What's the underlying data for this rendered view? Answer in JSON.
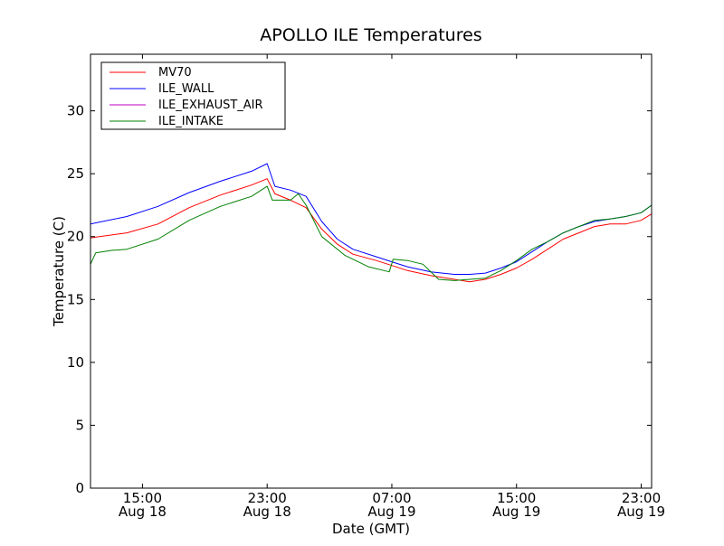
{
  "chart_data": {
    "type": "line",
    "title": "APOLLO ILE Temperatures",
    "xlabel": "Date (GMT)",
    "ylabel": "Temperature (C)",
    "x_range": [
      "2014-08-18 11:40",
      "2014-08-19 23:40"
    ],
    "ylim": [
      0,
      34.5
    ],
    "yticks": [
      0,
      5,
      10,
      15,
      20,
      25,
      30
    ],
    "xticks": [
      {
        "x": "2014-08-18 15:00",
        "line1": "15:00",
        "line2": "Aug 18"
      },
      {
        "x": "2014-08-18 23:00",
        "line1": "23:00",
        "line2": "Aug 18"
      },
      {
        "x": "2014-08-19 07:00",
        "line1": "07:00",
        "line2": "Aug 19"
      },
      {
        "x": "2014-08-19 15:00",
        "line1": "15:00",
        "line2": "Aug 19"
      },
      {
        "x": "2014-08-19 23:00",
        "line1": "23:00",
        "line2": "Aug 19"
      }
    ],
    "grid": false,
    "legend_position": "top-left",
    "series": [
      {
        "name": "MV70",
        "color": "#ff0000",
        "x": [
          "2014-08-18 11:40",
          "2014-08-18 14:00",
          "2014-08-18 16:00",
          "2014-08-18 18:00",
          "2014-08-18 20:00",
          "2014-08-18 22:00",
          "2014-08-18 23:00",
          "2014-08-18 23:30",
          "2014-08-19 00:30",
          "2014-08-19 01:30",
          "2014-08-19 02:30",
          "2014-08-19 03:30",
          "2014-08-19 04:30",
          "2014-08-19 06:00",
          "2014-08-19 07:00",
          "2014-08-19 08:00",
          "2014-08-19 09:30",
          "2014-08-19 11:00",
          "2014-08-19 12:00",
          "2014-08-19 13:00",
          "2014-08-19 14:00",
          "2014-08-19 15:00",
          "2014-08-19 16:00",
          "2014-08-19 17:00",
          "2014-08-19 18:00",
          "2014-08-19 19:00",
          "2014-08-19 20:00",
          "2014-08-19 21:00",
          "2014-08-19 22:00",
          "2014-08-19 23:00",
          "2014-08-19 23:40"
        ],
        "y": [
          19.9,
          20.3,
          21.0,
          22.3,
          23.3,
          24.1,
          24.6,
          23.4,
          22.9,
          22.3,
          20.6,
          19.4,
          18.6,
          18.1,
          17.7,
          17.3,
          16.9,
          16.6,
          16.4,
          16.6,
          17.0,
          17.5,
          18.2,
          19.0,
          19.8,
          20.3,
          20.8,
          21.0,
          21.0,
          21.3,
          21.8
        ]
      },
      {
        "name": "ILE_WALL",
        "color": "#0000ff",
        "x": [
          "2014-08-18 11:40",
          "2014-08-18 14:00",
          "2014-08-18 16:00",
          "2014-08-18 18:00",
          "2014-08-18 20:00",
          "2014-08-18 22:00",
          "2014-08-18 23:00",
          "2014-08-18 23:30",
          "2014-08-19 00:30",
          "2014-08-19 01:30",
          "2014-08-19 02:30",
          "2014-08-19 03:30",
          "2014-08-19 04:30",
          "2014-08-19 06:00",
          "2014-08-19 07:00",
          "2014-08-19 08:00",
          "2014-08-19 09:30",
          "2014-08-19 11:00",
          "2014-08-19 12:00",
          "2014-08-19 13:00",
          "2014-08-19 14:00",
          "2014-08-19 15:00",
          "2014-08-19 16:00",
          "2014-08-19 17:00",
          "2014-08-19 18:00",
          "2014-08-19 19:00",
          "2014-08-19 20:00",
          "2014-08-19 21:00",
          "2014-08-19 22:00",
          "2014-08-19 23:00",
          "2014-08-19 23:40"
        ],
        "y": [
          21.0,
          21.6,
          22.4,
          23.5,
          24.4,
          25.2,
          25.8,
          24.0,
          23.7,
          23.2,
          21.2,
          19.8,
          19.0,
          18.4,
          18.0,
          17.6,
          17.2,
          17.0,
          17.0,
          17.1,
          17.5,
          18.0,
          18.8,
          19.6,
          20.3,
          20.8,
          21.2,
          21.4,
          21.6,
          21.9,
          22.5
        ]
      },
      {
        "name": "ILE_EXHAUST_AIR",
        "color": "#bf00bf",
        "x": [],
        "y": []
      },
      {
        "name": "ILE_INTAKE",
        "color": "#008000",
        "x": [
          "2014-08-18 11:40",
          "2014-08-18 12:00",
          "2014-08-18 13:00",
          "2014-08-18 14:00",
          "2014-08-18 16:00",
          "2014-08-18 18:00",
          "2014-08-18 20:00",
          "2014-08-18 22:00",
          "2014-08-18 23:00",
          "2014-08-18 23:20",
          "2014-08-19 00:30",
          "2014-08-19 01:00",
          "2014-08-19 01:30",
          "2014-08-19 02:30",
          "2014-08-19 04:00",
          "2014-08-19 05:30",
          "2014-08-19 06:50",
          "2014-08-19 07:05",
          "2014-08-19 08:00",
          "2014-08-19 09:00",
          "2014-08-19 10:00",
          "2014-08-19 11:00",
          "2014-08-19 12:00",
          "2014-08-19 13:00",
          "2014-08-19 14:00",
          "2014-08-19 15:00",
          "2014-08-19 16:00",
          "2014-08-19 17:00",
          "2014-08-19 18:00",
          "2014-08-19 19:00",
          "2014-08-19 20:00",
          "2014-08-19 21:00",
          "2014-08-19 22:00",
          "2014-08-19 23:00",
          "2014-08-19 23:40"
        ],
        "y": [
          17.8,
          18.7,
          18.9,
          19.0,
          19.8,
          21.3,
          22.4,
          23.2,
          24.0,
          22.9,
          22.9,
          23.4,
          22.5,
          20.0,
          18.5,
          17.6,
          17.2,
          18.2,
          18.1,
          17.8,
          16.6,
          16.5,
          16.6,
          16.7,
          17.3,
          18.1,
          19.0,
          19.6,
          20.3,
          20.8,
          21.3,
          21.4,
          21.6,
          21.9,
          22.5
        ]
      }
    ]
  }
}
